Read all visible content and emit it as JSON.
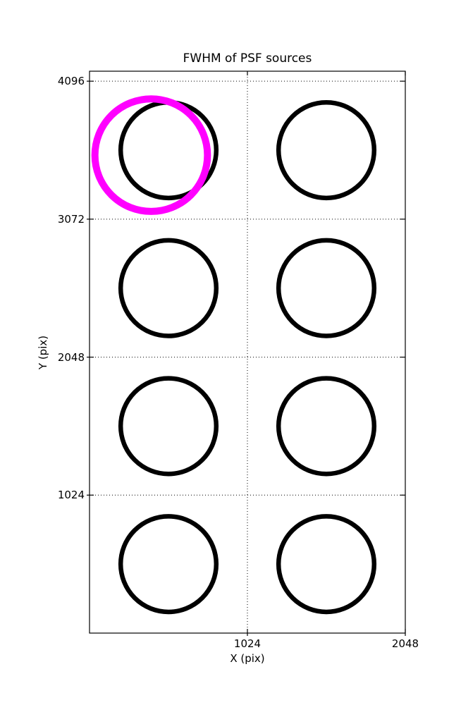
{
  "figure": {
    "background": "#ffffff",
    "text_color": "#000000"
  },
  "chart_data": {
    "type": "scatter",
    "title": "FWHM of PSF sources",
    "xlabel": "X (pix)",
    "ylabel": "Y (pix)",
    "xlim": [
      0,
      2048
    ],
    "ylim": [
      0,
      4170
    ],
    "xticks": [
      "1024",
      "2048"
    ],
    "xtick_values": [
      1024,
      2048
    ],
    "yticks": [
      "1024",
      "2048",
      "3072",
      "4096"
    ],
    "ytick_values": [
      1024,
      2048,
      3072,
      4096
    ],
    "grid": {
      "style": "dotted",
      "color": "#000000"
    },
    "frame_color": "#000000",
    "legend": null,
    "circles": [
      {
        "x": 512,
        "y": 3584,
        "r": 310,
        "color": "#000000",
        "stroke_px": 6.5,
        "highlight": false
      },
      {
        "x": 1536,
        "y": 3584,
        "r": 310,
        "color": "#000000",
        "stroke_px": 6.5,
        "highlight": false
      },
      {
        "x": 512,
        "y": 2560,
        "r": 310,
        "color": "#000000",
        "stroke_px": 6.5,
        "highlight": false
      },
      {
        "x": 1536,
        "y": 2560,
        "r": 310,
        "color": "#000000",
        "stroke_px": 6.5,
        "highlight": false
      },
      {
        "x": 512,
        "y": 1536,
        "r": 310,
        "color": "#000000",
        "stroke_px": 6.5,
        "highlight": false
      },
      {
        "x": 1536,
        "y": 1536,
        "r": 310,
        "color": "#000000",
        "stroke_px": 6.5,
        "highlight": false
      },
      {
        "x": 512,
        "y": 512,
        "r": 310,
        "color": "#000000",
        "stroke_px": 6.5,
        "highlight": false
      },
      {
        "x": 1536,
        "y": 512,
        "r": 310,
        "color": "#000000",
        "stroke_px": 6.5,
        "highlight": false
      },
      {
        "x": 400,
        "y": 3547,
        "r": 365,
        "color": "#ff00ff",
        "stroke_px": 10,
        "highlight": true
      }
    ]
  }
}
